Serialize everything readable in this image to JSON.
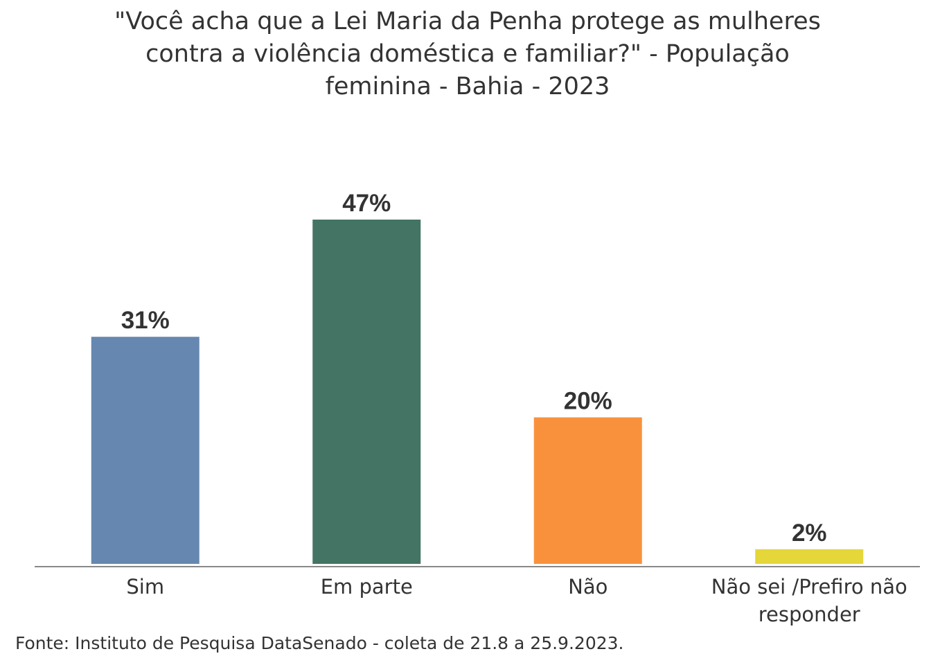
{
  "chart_data": {
    "type": "bar",
    "title_lines": [
      "\"Você acha que a Lei Maria da Penha protege as mulheres",
      "contra a violência doméstica e familiar?\" - População",
      "feminina - Bahia - 2023"
    ],
    "categories": [
      "Sim",
      "Em parte",
      "Não",
      "Não sei /Prefiro não responder"
    ],
    "category_label_lines": [
      [
        "Sim"
      ],
      [
        "Em parte"
      ],
      [
        "Não"
      ],
      [
        "Não sei /Prefiro não",
        "responder"
      ]
    ],
    "values": [
      31,
      47,
      20,
      2
    ],
    "data_labels": [
      "31%",
      "47%",
      "20%",
      "2%"
    ],
    "colors": [
      "#6688b0",
      "#447463",
      "#f9913c",
      "#e5d63a"
    ],
    "unit": "%",
    "ylim": [
      0,
      47
    ],
    "grid": false,
    "legend": "none",
    "xlabel": "",
    "ylabel": ""
  },
  "source_note": "Fonte: Instituto de Pesquisa DataSenado - coleta de 21.8 a 25.9.2023."
}
